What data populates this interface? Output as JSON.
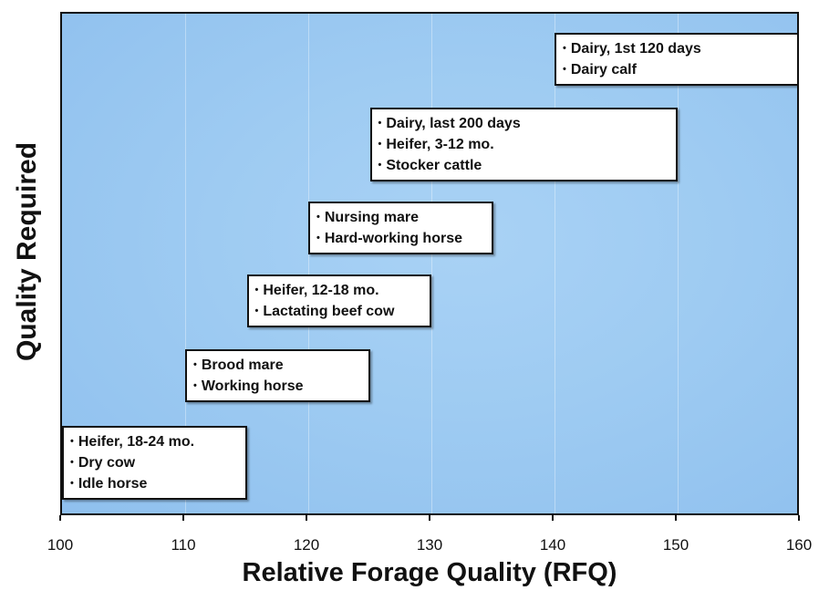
{
  "chart_data": {
    "type": "box-annotation",
    "title": "",
    "xlabel": "Relative Forage Quality (RFQ)",
    "ylabel": "Quality Required",
    "xlim": [
      100,
      160
    ],
    "x_ticks": [
      100,
      110,
      120,
      130,
      140,
      150,
      160
    ],
    "groups": [
      {
        "x_start": 100,
        "x_end": 115,
        "level": 1,
        "items": [
          "Heifer, 18-24 mo.",
          "Dry cow",
          "Idle horse"
        ]
      },
      {
        "x_start": 110,
        "x_end": 125,
        "level": 2,
        "items": [
          "Brood mare",
          "Working horse"
        ]
      },
      {
        "x_start": 115,
        "x_end": 130,
        "level": 3,
        "items": [
          "Heifer, 12-18 mo.",
          "Lactating beef cow"
        ]
      },
      {
        "x_start": 120,
        "x_end": 135,
        "level": 4,
        "items": [
          "Nursing mare",
          "Hard-working horse"
        ]
      },
      {
        "x_start": 125,
        "x_end": 150,
        "level": 5,
        "items": [
          "Dairy, last 200 days",
          "Heifer, 3-12 mo.",
          "Stocker cattle"
        ]
      },
      {
        "x_start": 140,
        "x_end": 160,
        "level": 6,
        "items": [
          "Dairy, 1st 120 days",
          "Dairy calf"
        ]
      }
    ],
    "colors": {
      "plot_background": "#9ecbf2",
      "box_fill": "#ffffff",
      "text": "#111111"
    }
  }
}
